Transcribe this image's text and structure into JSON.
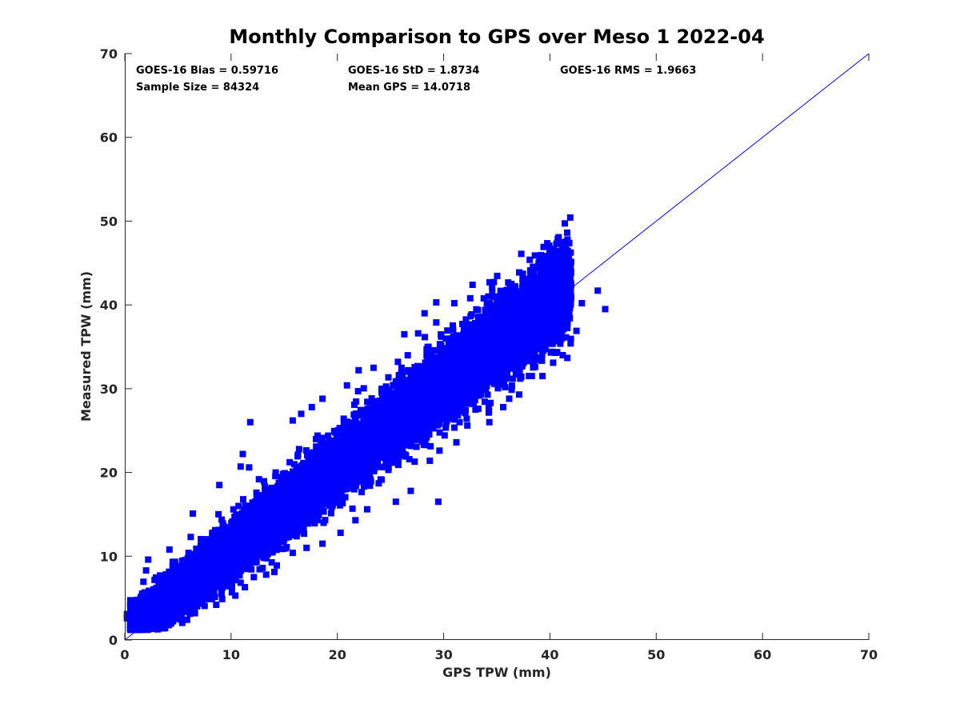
{
  "chart_data": {
    "type": "scatter",
    "title": "Monthly Comparison to GPS over Meso 1 2022-04",
    "xlabel": "GPS TPW (mm)",
    "ylabel": "Measured TPW (mm)",
    "xlim": [
      0,
      70
    ],
    "ylim": [
      0,
      70
    ],
    "xticks": [
      "0",
      "10",
      "20",
      "30",
      "40",
      "50",
      "60",
      "70"
    ],
    "yticks": [
      "0",
      "10",
      "20",
      "30",
      "40",
      "50",
      "60",
      "70"
    ],
    "grid": false,
    "marker_color": "#0000ff",
    "line_color": "#0000ff",
    "reference_line": {
      "x": [
        0,
        70
      ],
      "y": [
        0,
        70
      ]
    },
    "stats": {
      "bias": "GOES-16 Bias = 0.59716",
      "std": "GOES-16 StD = 1.8734",
      "rms": "GOES-16 RMS = 1.9663",
      "sample_size": "Sample Size = 84324",
      "mean_gps": "Mean GPS = 14.0718"
    },
    "series": [
      {
        "cloud": {
          "trend": {
            "slope": 1.0,
            "intercept": 0.6
          },
          "x_range": [
            0.5,
            42
          ],
          "core_spread": [
            1.2,
            2.6
          ],
          "n_points": 16000
        },
        "values": [
          [
            37.3,
            46.1
          ],
          [
            44.5,
            41.7
          ],
          [
            45.2,
            39.5
          ],
          [
            43.0,
            40.2
          ],
          [
            41.8,
            40.6
          ],
          [
            40.5,
            42.5
          ],
          [
            39.8,
            43.0
          ],
          [
            38.7,
            42.1
          ],
          [
            37.3,
            41.6
          ],
          [
            36.0,
            41.8
          ],
          [
            34.2,
            41.0
          ],
          [
            32.5,
            40.8
          ],
          [
            31.0,
            40.2
          ],
          [
            29.3,
            40.3
          ],
          [
            29.3,
            37.9
          ],
          [
            28.2,
            39.0
          ],
          [
            27.6,
            36.6
          ],
          [
            26.3,
            36.5
          ],
          [
            25.7,
            33.2
          ],
          [
            23.4,
            32.5
          ],
          [
            22.0,
            32.2
          ],
          [
            20.9,
            30.4
          ],
          [
            18.6,
            28.8
          ],
          [
            17.6,
            27.8
          ],
          [
            16.6,
            27.0
          ],
          [
            15.8,
            26.2
          ],
          [
            11.8,
            26.0
          ],
          [
            11.1,
            22.2
          ],
          [
            11.7,
            20.6
          ],
          [
            10.9,
            20.7
          ],
          [
            8.9,
            18.5
          ],
          [
            6.4,
            15.1
          ],
          [
            6.2,
            12.3
          ],
          [
            4.2,
            10.8
          ],
          [
            2.2,
            9.6
          ],
          [
            2.0,
            8.3
          ],
          [
            0.2,
            2.6
          ],
          [
            0.2,
            3.1
          ],
          [
            1.5,
            1.4
          ],
          [
            2.5,
            2.0
          ],
          [
            3.6,
            2.2
          ],
          [
            5.3,
            2.6
          ],
          [
            6.6,
            3.2
          ],
          [
            8.6,
            4.2
          ],
          [
            10.4,
            5.3
          ],
          [
            11.3,
            6.3
          ],
          [
            13.3,
            7.8
          ],
          [
            14.3,
            8.9
          ],
          [
            15.8,
            10.4
          ],
          [
            17.1,
            11.0
          ],
          [
            18.6,
            11.5
          ],
          [
            20.3,
            12.8
          ],
          [
            21.7,
            14.3
          ],
          [
            22.8,
            15.6
          ],
          [
            25.5,
            16.5
          ],
          [
            26.9,
            17.8
          ],
          [
            29.5,
            16.5
          ],
          [
            28.7,
            21.4
          ],
          [
            29.6,
            22.6
          ],
          [
            31.2,
            23.6
          ],
          [
            34.3,
            26.0
          ],
          [
            35.6,
            27.8
          ],
          [
            37.1,
            29.3
          ],
          [
            39.3,
            31.5
          ],
          [
            40.3,
            33.1
          ],
          [
            41.2,
            34.0
          ],
          [
            41.0,
            35.8
          ],
          [
            42.5,
            36.9
          ],
          [
            40.2,
            34.4
          ],
          [
            38.5,
            33.3
          ],
          [
            36.5,
            31.2
          ],
          [
            33.0,
            27.5
          ],
          [
            31.5,
            26.0
          ],
          [
            28.4,
            24.2
          ],
          [
            26.2,
            22.0
          ],
          [
            24.8,
            20.3
          ],
          [
            23.0,
            19.2
          ],
          [
            20.3,
            17.8
          ],
          [
            18.7,
            16.6
          ],
          [
            17.7,
            15.2
          ],
          [
            14.9,
            13.2
          ],
          [
            13.2,
            11.4
          ],
          [
            12.1,
            10.2
          ],
          [
            10.3,
            8.7
          ],
          [
            9.3,
            6.6
          ],
          [
            7.8,
            5.8
          ],
          [
            6.5,
            4.8
          ],
          [
            5.1,
            4.0
          ],
          [
            16.2,
            16.2
          ],
          [
            33.9,
            34.0
          ]
        ]
      }
    ]
  }
}
